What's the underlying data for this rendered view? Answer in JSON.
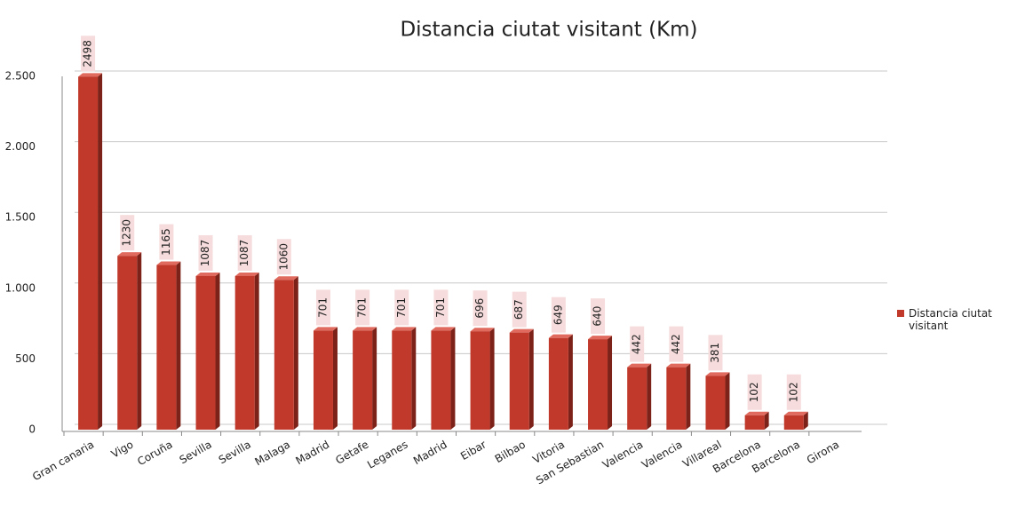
{
  "chart_data": {
    "type": "bar",
    "title": "Distancia ciutat visitant (Km)",
    "categories": [
      "Gran canaria",
      "Vigo",
      "Coruña",
      "Sevilla",
      "Sevilla",
      "Malaga",
      "Madrid",
      "Getafe",
      "Leganes",
      "Madrid",
      "Eibar",
      "Bilbao",
      "Vitoria",
      "San Sebastian",
      "Valencia",
      "Valencia",
      "Villareal",
      "Barcelona",
      "Barcelona",
      "Girona"
    ],
    "series": [
      {
        "name": "Distancia ciutat visitant",
        "color": "#c0392b",
        "values": [
          2498,
          1230,
          1165,
          1087,
          1087,
          1060,
          701,
          701,
          701,
          701,
          696,
          687,
          649,
          640,
          442,
          442,
          381,
          102,
          102,
          null
        ]
      }
    ],
    "ylim": [
      0,
      2500
    ],
    "yticks": [
      0,
      500,
      {
        "value": 1000,
        "label": "1.000"
      },
      {
        "value": 1500,
        "label": "1.500"
      },
      {
        "value": 2000,
        "label": "2.000"
      },
      {
        "value": 2500,
        "label": "2.500"
      }
    ],
    "grid": true,
    "legend": "right"
  }
}
